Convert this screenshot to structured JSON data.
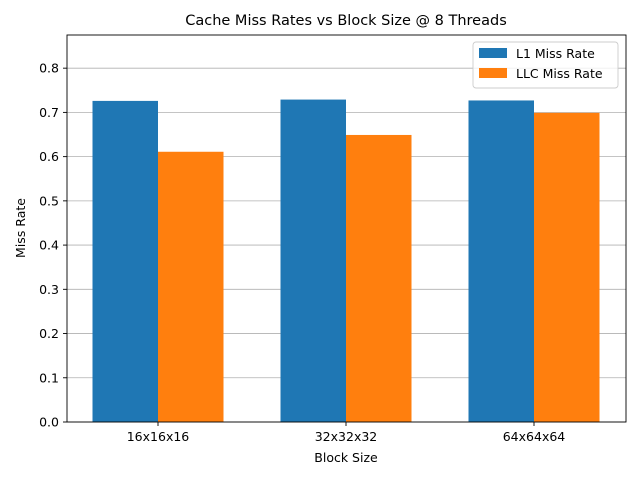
{
  "chart_data": {
    "type": "bar",
    "title": "Cache Miss Rates vs Block Size @ 8 Threads",
    "xlabel": "Block Size",
    "ylabel": "Miss Rate",
    "categories": [
      "16x16x16",
      "32x32x32",
      "64x64x64"
    ],
    "series": [
      {
        "name": "L1 Miss Rate",
        "values": [
          0.726,
          0.729,
          0.727
        ],
        "color": "#1f77b4"
      },
      {
        "name": "LLC Miss Rate",
        "values": [
          0.611,
          0.649,
          0.699
        ],
        "color": "#ff7f0e"
      }
    ],
    "ylim": [
      0.0,
      0.875
    ],
    "yticks": [
      0.0,
      0.1,
      0.2,
      0.3,
      0.4,
      0.5,
      0.6,
      0.7,
      0.8
    ],
    "ytick_labels": [
      "0.0",
      "0.1",
      "0.2",
      "0.3",
      "0.4",
      "0.5",
      "0.6",
      "0.7",
      "0.8"
    ],
    "grid": "y-axis",
    "legend_position": "top-right"
  }
}
